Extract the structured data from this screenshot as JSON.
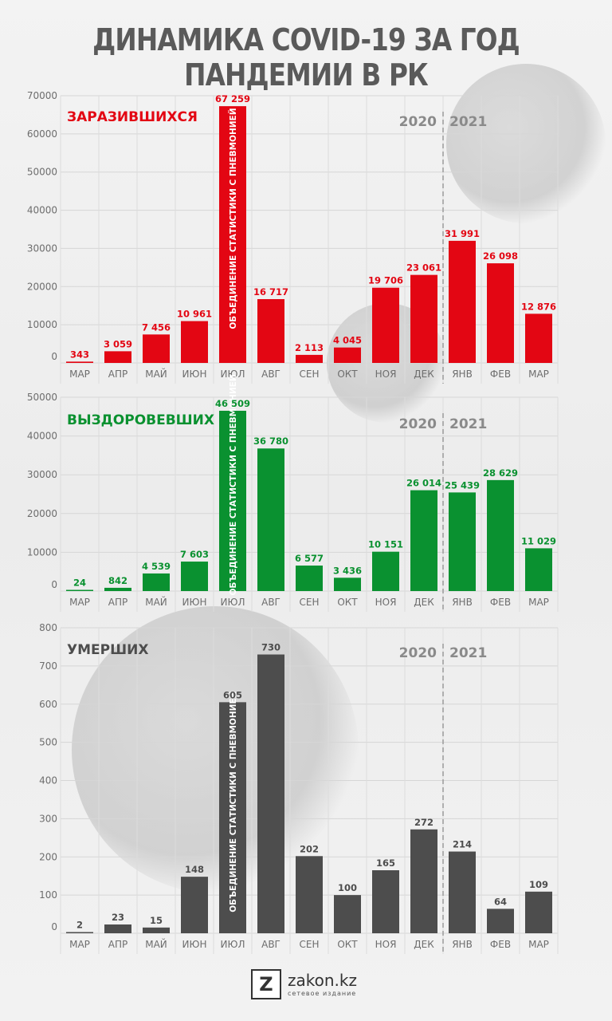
{
  "title": "ДИНАМИКА COVID-19 ЗА ГОД ПАНДЕМИИ В РК",
  "colors": {
    "infected": "#e30613",
    "recovered": "#0a9130",
    "died": "#4d4d4d",
    "axis": "#6d6d6d",
    "year": "#8a8a8a"
  },
  "years": {
    "left": "2020",
    "right": "2021"
  },
  "annotation": "ОБЪЕДИНЕНИЕ СТАТИСТИКИ С ПНЕВМОНИЕЙ",
  "chart_data": [
    {
      "type": "bar",
      "title": "ЗАРАЗИВШИХСЯ",
      "categories": [
        "МАР",
        "АПР",
        "МАЙ",
        "ИЮН",
        "ИЮЛ",
        "АВГ",
        "СЕН",
        "ОКТ",
        "НОЯ",
        "ДЕК",
        "ЯНВ",
        "ФЕВ",
        "МАР"
      ],
      "values": [
        343,
        3059,
        7456,
        10961,
        67259,
        16717,
        2113,
        4045,
        19706,
        23061,
        31991,
        26098,
        12876
      ],
      "value_labels": [
        "343",
        "3 059",
        "7 456",
        "10 961",
        "67 259",
        "16 717",
        "2 113",
        "4 045",
        "19 706",
        "23 061",
        "31 991",
        "26 098",
        "12 876"
      ],
      "yticks": [
        0,
        10000,
        20000,
        30000,
        40000,
        50000,
        60000,
        70000
      ],
      "ylim": [
        0,
        70000
      ],
      "grid": true,
      "annotated_index": 4
    },
    {
      "type": "bar",
      "title": "ВЫЗДОРОВЕВШИХ",
      "categories": [
        "МАР",
        "АПР",
        "МАЙ",
        "ИЮН",
        "ИЮЛ",
        "АВГ",
        "СЕН",
        "ОКТ",
        "НОЯ",
        "ДЕК",
        "ЯНВ",
        "ФЕВ",
        "МАР"
      ],
      "values": [
        24,
        842,
        4539,
        7603,
        46509,
        36780,
        6577,
        3436,
        10151,
        26014,
        25439,
        28629,
        11029
      ],
      "value_labels": [
        "24",
        "842",
        "4 539",
        "7 603",
        "46 509",
        "36 780",
        "6 577",
        "3 436",
        "10 151",
        "26 014",
        "25 439",
        "28 629",
        "11 029"
      ],
      "yticks": [
        0,
        10000,
        20000,
        30000,
        40000,
        50000
      ],
      "ylim": [
        0,
        50000
      ],
      "grid": true,
      "annotated_index": 4
    },
    {
      "type": "bar",
      "title": "УМЕРШИХ",
      "categories": [
        "МАР",
        "АПР",
        "МАЙ",
        "ИЮН",
        "ИЮЛ",
        "АВГ",
        "СЕН",
        "ОКТ",
        "НОЯ",
        "ДЕК",
        "ЯНВ",
        "ФЕВ",
        "МАР"
      ],
      "values": [
        2,
        23,
        15,
        148,
        605,
        730,
        202,
        100,
        165,
        272,
        214,
        64,
        109
      ],
      "value_labels": [
        "2",
        "23",
        "15",
        "148",
        "605",
        "730",
        "202",
        "100",
        "165",
        "272",
        "214",
        "64",
        "109"
      ],
      "yticks": [
        0,
        100,
        200,
        300,
        400,
        500,
        600,
        700,
        800
      ],
      "ylim": [
        0,
        800
      ],
      "grid": true,
      "annotated_index": 4
    }
  ],
  "logo": {
    "mark": "Z",
    "name": "zakon.kz",
    "tagline": "сетевое издание"
  }
}
